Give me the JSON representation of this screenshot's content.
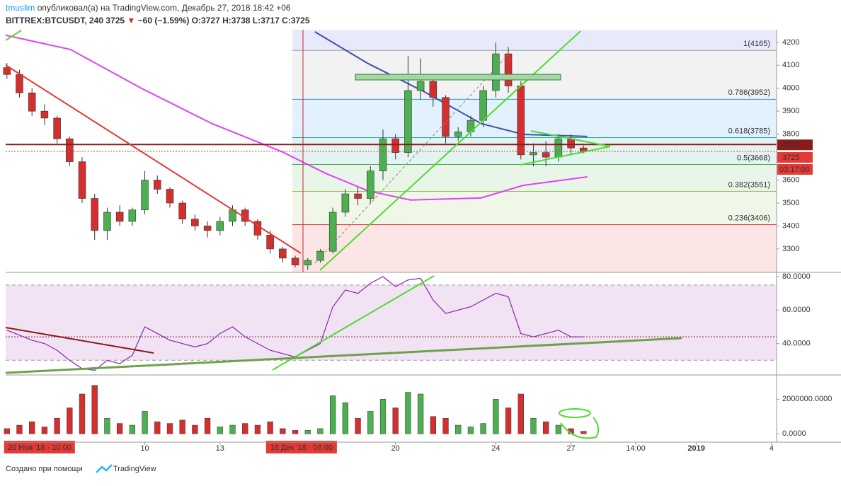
{
  "header": {
    "author": "tmuslim",
    "published": "опубликовал(а) на TradingView.com, Декабрь 27, 2018 18:42 +06",
    "symbol": "BITTREX:BTCUSDT, 240",
    "last": "3725",
    "arrow": "▼",
    "change": "−60 (−1.59%)",
    "open": "O:3727",
    "high": "H:3738",
    "low": "L:3717",
    "close": "C:3725"
  },
  "chart_data": [
    {
      "type": "candlestick",
      "xlim": [
        4.45,
        35.2
      ],
      "ylim": [
        3198,
        4255
      ],
      "yticks": [
        3300,
        3400,
        3500,
        3600,
        3700,
        3800,
        3900,
        4000,
        4100,
        4200
      ],
      "up_color": "#4caf50",
      "down_color": "#d32f2f",
      "x": [
        4.5,
        5,
        5.5,
        6,
        6.5,
        7,
        7.5,
        8,
        8.5,
        9,
        9.5,
        10,
        10.5,
        11,
        11.5,
        12,
        12.5,
        13,
        13.5,
        14,
        14.5,
        15,
        15.5,
        16,
        16.5,
        17,
        17.5,
        18,
        18.5,
        19,
        19.5,
        20,
        20.5,
        21,
        21.5,
        22,
        22.5,
        23,
        23.5,
        24,
        24.5,
        25,
        25.5,
        26,
        26.5,
        27,
        27.5
      ],
      "open": [
        4090,
        4060,
        3980,
        3900,
        3870,
        3780,
        3680,
        3520,
        3380,
        3460,
        3420,
        3470,
        3600,
        3560,
        3500,
        3430,
        3400,
        3380,
        3420,
        3470,
        3420,
        3360,
        3300,
        3260,
        3230,
        3250,
        3290,
        3460,
        3540,
        3520,
        3640,
        3780,
        3720,
        3990,
        4030,
        3960,
        3790,
        3810,
        3860,
        3990,
        4150,
        4010,
        3710,
        3720,
        3700,
        3780,
        3740
      ],
      "high": [
        4110,
        4080,
        4000,
        3930,
        3880,
        3790,
        3700,
        3540,
        3480,
        3490,
        3480,
        3640,
        3620,
        3570,
        3510,
        3450,
        3420,
        3440,
        3490,
        3480,
        3430,
        3380,
        3310,
        3270,
        3260,
        3300,
        3480,
        3560,
        3570,
        3660,
        3820,
        3800,
        4140,
        4130,
        4040,
        3970,
        3830,
        3880,
        4010,
        4200,
        4180,
        4030,
        3760,
        3770,
        3800,
        3800,
        3750
      ],
      "low": [
        4040,
        3960,
        3880,
        3840,
        3760,
        3660,
        3500,
        3340,
        3340,
        3400,
        3400,
        3450,
        3540,
        3480,
        3410,
        3380,
        3350,
        3360,
        3400,
        3400,
        3340,
        3280,
        3240,
        3220,
        3210,
        3240,
        3280,
        3440,
        3490,
        3500,
        3600,
        3690,
        3700,
        3950,
        3920,
        3760,
        3770,
        3790,
        3830,
        3960,
        3980,
        3690,
        3660,
        3660,
        3680,
        3710,
        3717
      ],
      "close": [
        4060,
        3980,
        3900,
        3870,
        3780,
        3680,
        3520,
        3380,
        3460,
        3420,
        3470,
        3600,
        3560,
        3500,
        3430,
        3400,
        3380,
        3420,
        3470,
        3420,
        3360,
        3300,
        3260,
        3230,
        3250,
        3290,
        3460,
        3540,
        3520,
        3640,
        3780,
        3720,
        3990,
        4030,
        3960,
        3790,
        3810,
        3860,
        3990,
        4150,
        4010,
        3710,
        3720,
        3700,
        3780,
        3740,
        3725
      ],
      "lines": [
        {
          "color": "#e040fb",
          "x": [
            4.44,
            7.03,
            9.86,
            12.68,
            15.5,
            17.2,
            18.9,
            20.6,
            23.4,
            25.1,
            27.65
          ],
          "values": [
            4231,
            4169,
            4000,
            3846,
            3722,
            3630,
            3553,
            3513,
            3522,
            3577,
            3614
          ]
        },
        {
          "color": "#3f51b5",
          "x": [
            16.78,
            18.9,
            21.16,
            23.42,
            25.1,
            26.8,
            27.65
          ],
          "values": [
            4246,
            4108,
            3984,
            3846,
            3799,
            3793,
            3790
          ]
        }
      ],
      "fib_levels": [
        {
          "label": "1(4165)",
          "value": 4165,
          "color": "#9e9e9e"
        },
        {
          "label": "0.786(3952)",
          "value": 3952,
          "color": "#2196f3"
        },
        {
          "label": "0.618(3785)",
          "value": 3785,
          "color": "#26a69a"
        },
        {
          "label": "0.5(3668)",
          "value": 3668,
          "color": "#4caf50"
        },
        {
          "label": "0.382(3551)",
          "value": 3551,
          "color": "#8bc34a"
        },
        {
          "label": "0.236(3406)",
          "value": 3406,
          "color": "#e53935"
        }
      ],
      "hlines": [
        {
          "value": 3755,
          "color": "#8b1a1a",
          "dashed": false
        },
        {
          "value": 3725,
          "color": "#e53935",
          "dashed": true
        }
      ],
      "countdown": "03:17:00"
    },
    {
      "type": "line",
      "xlim": [
        4.45,
        35.2
      ],
      "ylim": [
        21.25,
        81.7
      ],
      "color": "#8e24aa",
      "yticks": [
        {
          "value": 40,
          "label": "40.0000"
        },
        {
          "value": 60,
          "label": "60.0000"
        },
        {
          "value": 80,
          "label": "80.0000"
        }
      ],
      "band": [
        30,
        75
      ],
      "hlines": [
        44
      ],
      "x": [
        4.5,
        5,
        5.5,
        6,
        6.5,
        7,
        7.5,
        8,
        8.5,
        9,
        9.5,
        10,
        10.5,
        11,
        11.5,
        12,
        12.5,
        13,
        13.5,
        14,
        14.5,
        15,
        15.5,
        16,
        16.5,
        17,
        17.5,
        18,
        18.5,
        19,
        19.5,
        20,
        20.5,
        21,
        21.5,
        22,
        22.5,
        23,
        23.5,
        24,
        24.5,
        25,
        25.5,
        26,
        26.5,
        27,
        27.5
      ],
      "values": [
        48,
        45,
        42,
        40,
        36,
        30,
        25,
        24,
        30,
        28,
        33,
        50,
        46,
        42,
        40,
        38,
        40,
        46,
        50,
        44,
        40,
        36,
        34,
        32,
        36,
        40,
        62,
        72,
        70,
        76,
        80,
        74,
        78,
        79,
        66,
        58,
        60,
        62,
        66,
        70,
        68,
        46,
        44,
        46,
        48,
        44,
        44
      ]
    },
    {
      "type": "bar",
      "xlim": [
        4.45,
        35.2
      ],
      "ylim": [
        -480000,
        3320000
      ],
      "yticks": [
        {
          "value": 0,
          "label": "0.0000"
        },
        {
          "value": 2000000,
          "label": "2000000.0000"
        }
      ],
      "xticks": [
        10,
        13,
        20,
        24,
        27,
        {
          "value": 29.58,
          "label": "14:00"
        },
        {
          "value": 32,
          "label": "2019"
        },
        {
          "value": 35,
          "label": "4"
        }
      ],
      "x_markers": [
        {
          "value": 5.8,
          "label": "20 Ноя '18 · 10:00"
        },
        {
          "value": 16.25,
          "label": "16 Дек '18 · 06:00"
        }
      ],
      "x": [
        4.5,
        5,
        5.5,
        6,
        6.5,
        7,
        7.5,
        8,
        8.5,
        9,
        9.5,
        10,
        10.5,
        11,
        11.5,
        12,
        12.5,
        13,
        13.5,
        14,
        14.5,
        15,
        15.5,
        16,
        16.5,
        17,
        17.5,
        18,
        18.5,
        19,
        19.5,
        20,
        20.5,
        21,
        21.5,
        22,
        22.5,
        23,
        23.5,
        24,
        24.5,
        25,
        25.5,
        26,
        26.5,
        27,
        27.5
      ],
      "values": [
        300000,
        500000,
        700000,
        400000,
        900000,
        1500000,
        2300000,
        2800000,
        900000,
        600000,
        500000,
        1300000,
        700000,
        600000,
        800000,
        500000,
        900000,
        400000,
        500000,
        600000,
        500000,
        700000,
        300000,
        200000,
        200000,
        300000,
        2200000,
        1800000,
        900000,
        1300000,
        2000000,
        1500000,
        2400000,
        2300000,
        1000000,
        900000,
        500000,
        400000,
        600000,
        2000000,
        1500000,
        2300000,
        900000,
        700000,
        500000,
        300000,
        150000
      ]
    }
  ],
  "footer": {
    "made_with": "Создано при помощи",
    "brand": "TradingView"
  }
}
